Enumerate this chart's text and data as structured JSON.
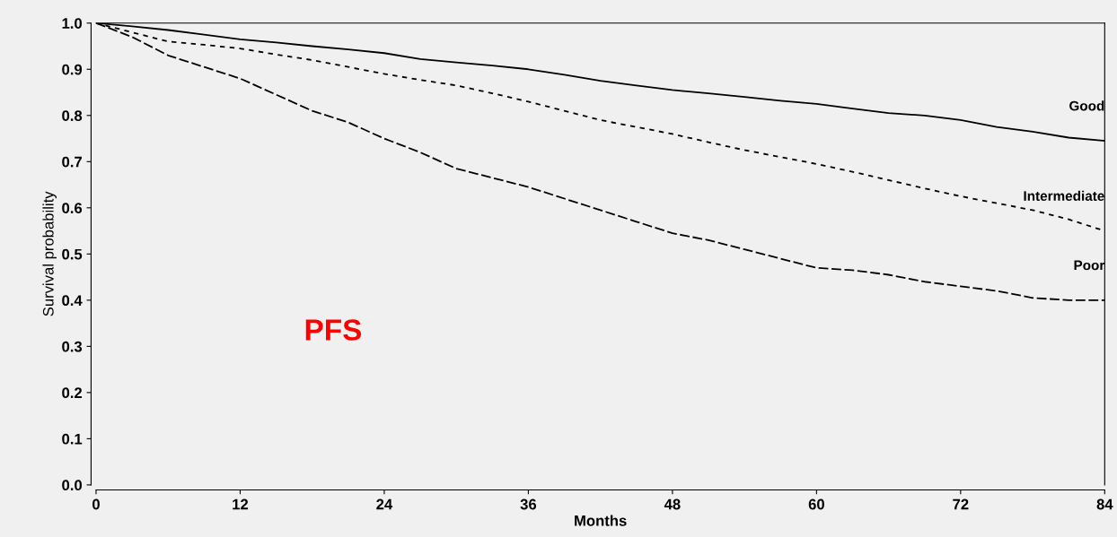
{
  "chart_data": {
    "type": "line",
    "xlabel": "Months",
    "ylabel": "Survival probability",
    "x": [
      0,
      3,
      6,
      9,
      12,
      15,
      18,
      21,
      24,
      27,
      30,
      33,
      36,
      39,
      42,
      45,
      48,
      51,
      54,
      57,
      60,
      63,
      66,
      69,
      72,
      75,
      78,
      81,
      84
    ],
    "xlim": [
      0,
      84
    ],
    "xticks": [
      0,
      12,
      24,
      36,
      48,
      60,
      72,
      84
    ],
    "ylim": [
      0,
      1
    ],
    "yticks": [
      {
        "value": 0,
        "label": "0.0"
      },
      0.1,
      0.2,
      0.3,
      0.4,
      0.5,
      0.6,
      0.7,
      0.8,
      0.9,
      {
        "value": 1,
        "label": "1.0"
      }
    ],
    "series": [
      {
        "name": "Good",
        "color": "#000000",
        "line_style": "solid",
        "values": [
          1.0,
          0.993,
          0.985,
          0.975,
          0.965,
          0.958,
          0.95,
          0.943,
          0.935,
          0.922,
          0.915,
          0.908,
          0.9,
          0.888,
          0.875,
          0.865,
          0.855,
          0.848,
          0.84,
          0.832,
          0.825,
          0.815,
          0.805,
          0.8,
          0.79,
          0.775,
          0.765,
          0.752,
          0.745
        ]
      },
      {
        "name": "Intermediate",
        "color": "#000000",
        "line_style": "dotted",
        "values": [
          1.0,
          0.98,
          0.96,
          0.953,
          0.945,
          0.932,
          0.92,
          0.905,
          0.89,
          0.877,
          0.865,
          0.848,
          0.83,
          0.81,
          0.79,
          0.775,
          0.76,
          0.742,
          0.725,
          0.71,
          0.695,
          0.678,
          0.66,
          0.642,
          0.625,
          0.61,
          0.595,
          0.575,
          0.55
        ]
      },
      {
        "name": "Poor",
        "color": "#000000",
        "line_style": "dashed",
        "values": [
          1.0,
          0.97,
          0.93,
          0.905,
          0.88,
          0.845,
          0.81,
          0.785,
          0.75,
          0.72,
          0.685,
          0.665,
          0.645,
          0.62,
          0.595,
          0.57,
          0.545,
          0.53,
          0.51,
          0.49,
          0.47,
          0.465,
          0.455,
          0.44,
          0.43,
          0.42,
          0.405,
          0.4,
          0.4
        ]
      }
    ],
    "annotations": [
      "PFS"
    ],
    "grid": false,
    "legend": false,
    "marker": "none"
  }
}
